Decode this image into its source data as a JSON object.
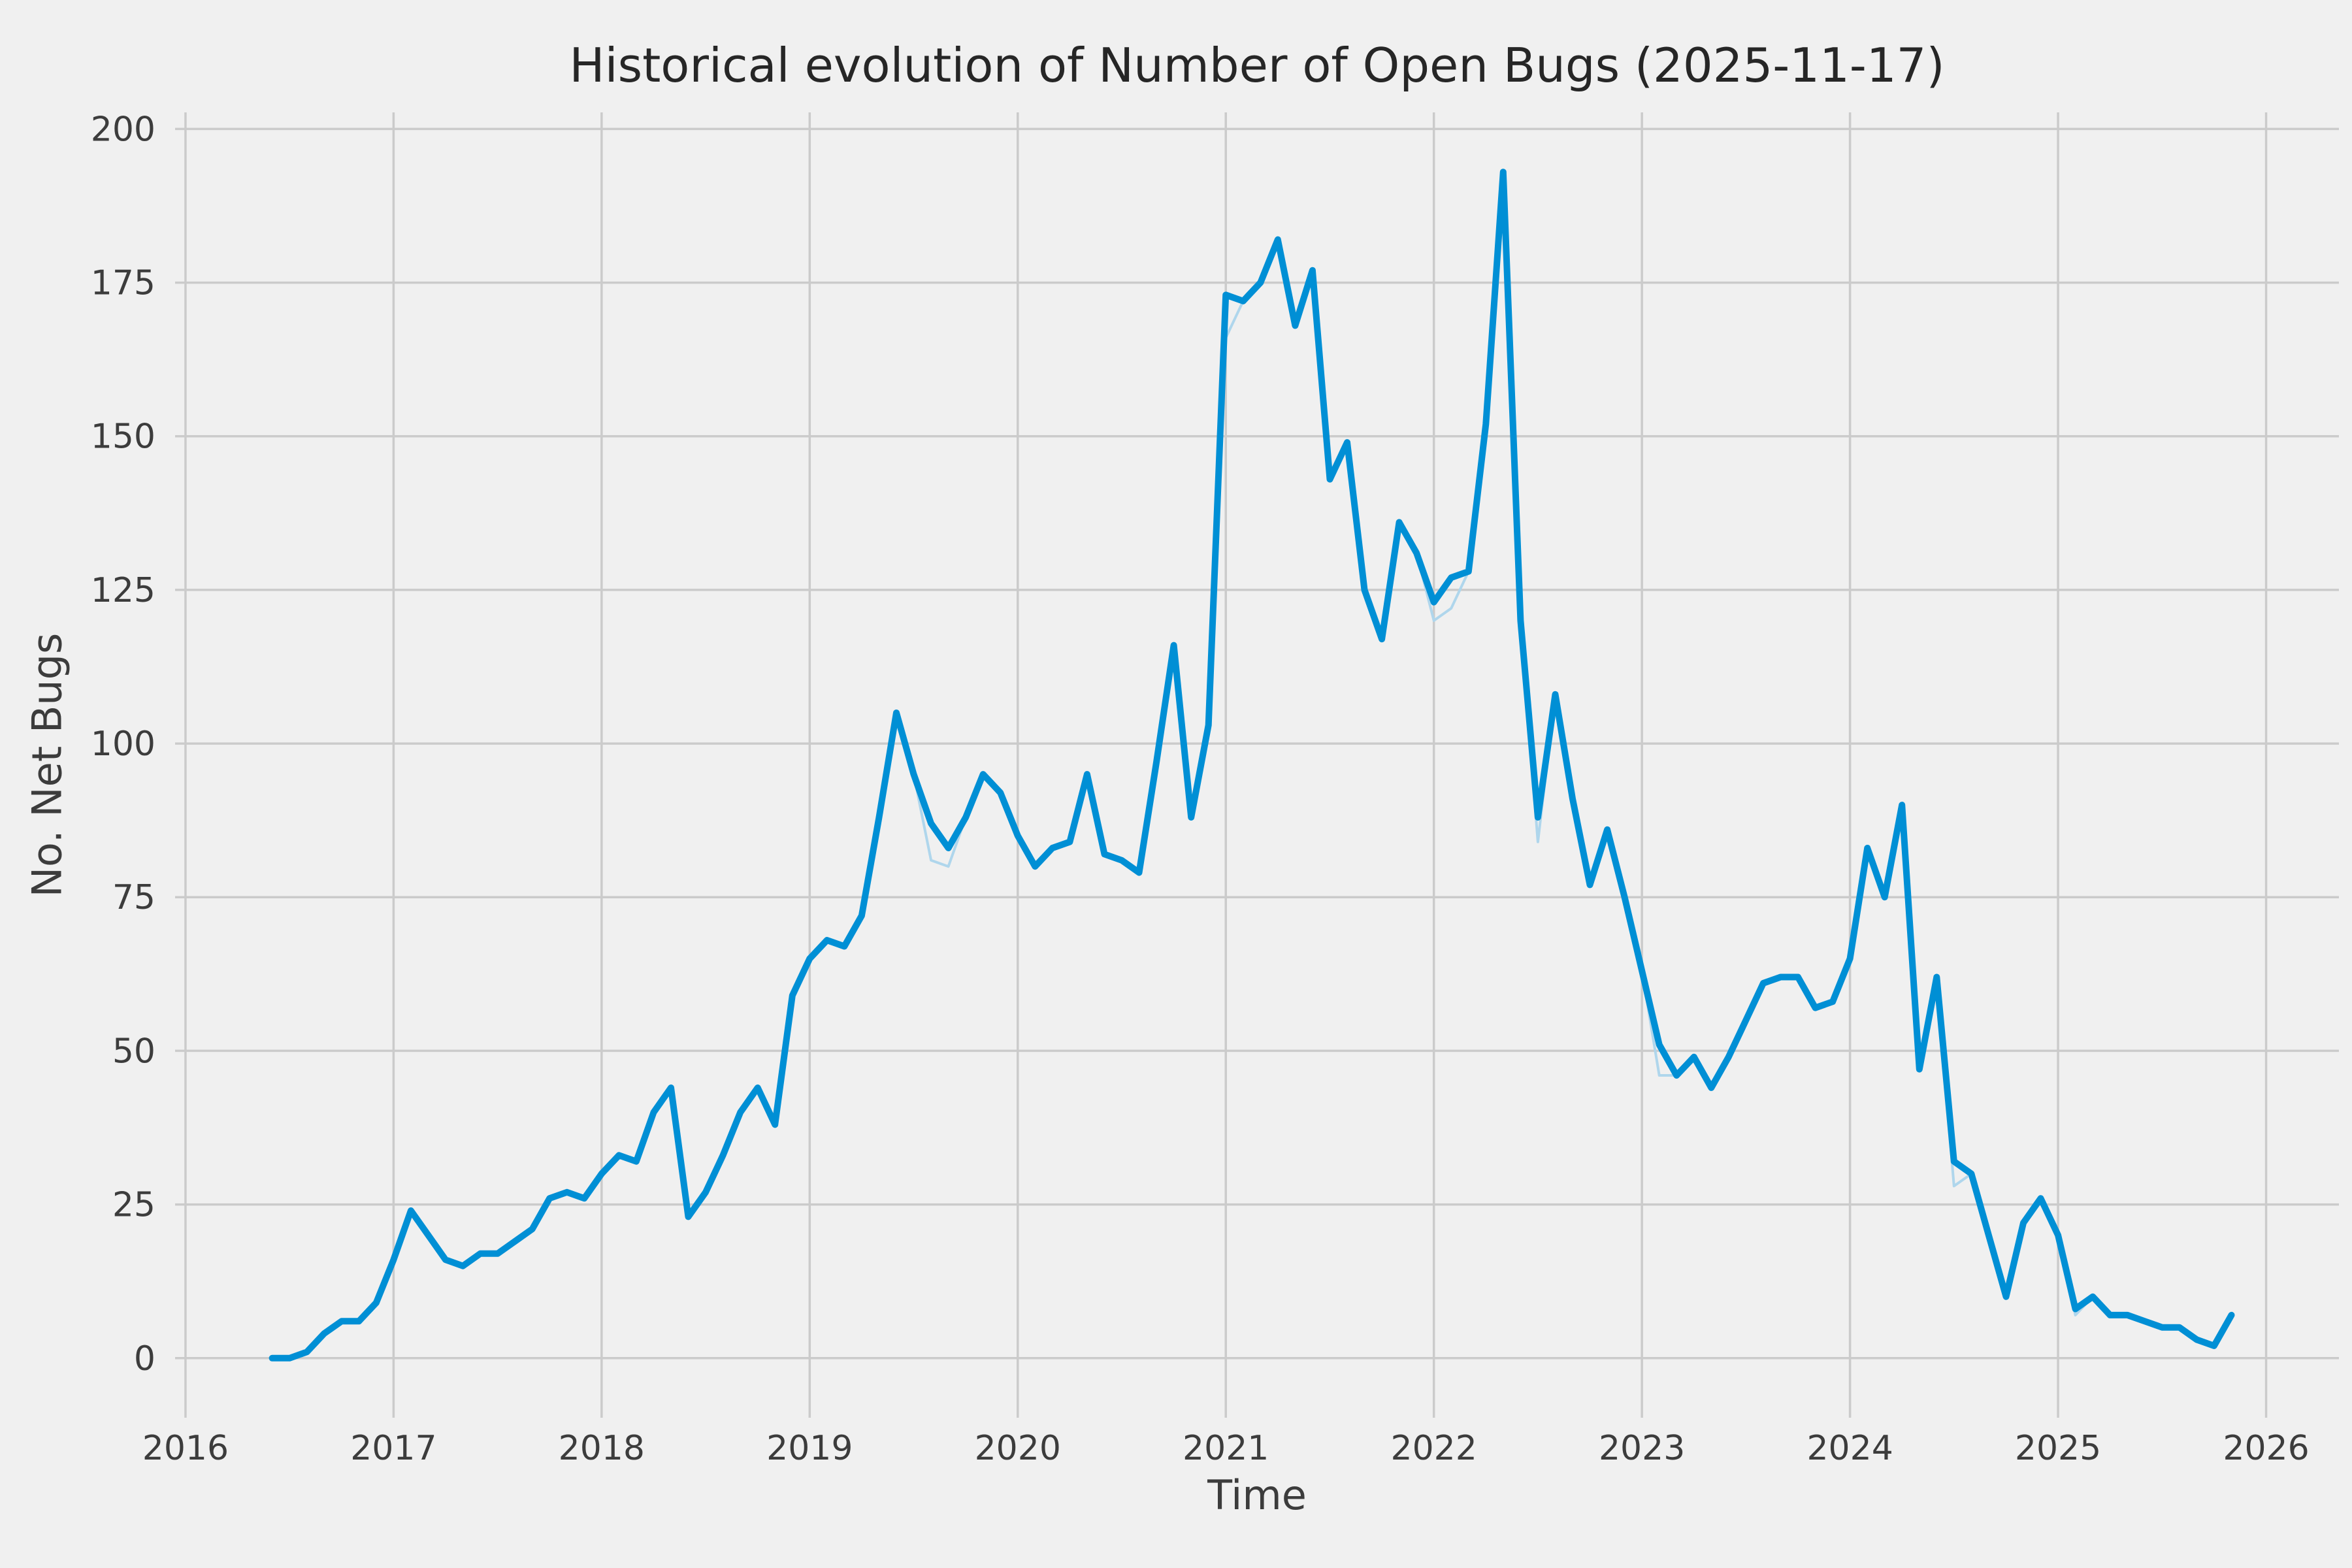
{
  "title": "Historical evolution of Number of Open Bugs (2025-11-17)",
  "colors": {
    "background": "#F0F0F0",
    "grid": "#CBCBCB",
    "line": "#008FD5",
    "line_secondary": "#AFD6EC",
    "title_text": "#262626",
    "tick_text": "#3C3C3C"
  },
  "chart_data": {
    "type": "line",
    "title": "Historical evolution of Number of Open Bugs (2025-11-17)",
    "xlabel": "Time",
    "ylabel": "No. Net Bugs",
    "grid": true,
    "legend_position": "none",
    "x_start": {
      "year": 2016,
      "month": 6
    },
    "cadence": "monthly",
    "x_ticks": [
      2016,
      2017,
      2018,
      2019,
      2020,
      2021,
      2022,
      2023,
      2024,
      2025,
      2026
    ],
    "y_ticks": [
      0,
      25,
      50,
      75,
      100,
      125,
      150,
      175,
      200
    ],
    "xlim": [
      2015.95,
      2026.35
    ],
    "ylim": [
      -9.7,
      202.7
    ],
    "series": [
      {
        "name": "open-bugs",
        "color_key": "line",
        "width": 10,
        "values": [
          0,
          0,
          1,
          4,
          6,
          6,
          9,
          16,
          24,
          20,
          16,
          15,
          17,
          17,
          19,
          21,
          26,
          27,
          26,
          30,
          33,
          32,
          40,
          44,
          23,
          27,
          33,
          40,
          44,
          38,
          59,
          65,
          68,
          67,
          72,
          88,
          105,
          95,
          87,
          83,
          88,
          95,
          92,
          85,
          80,
          83,
          84,
          95,
          82,
          81,
          79,
          97,
          116,
          88,
          103,
          173,
          172,
          175,
          182,
          168,
          177,
          143,
          149,
          125,
          117,
          136,
          131,
          123,
          127,
          128,
          152,
          193,
          120,
          88,
          108,
          91,
          77,
          86,
          75,
          63,
          51,
          46,
          49,
          44,
          49,
          55,
          61,
          62,
          62,
          57,
          58,
          65,
          83,
          75,
          90,
          47,
          62,
          32,
          30,
          20,
          10,
          22,
          26,
          20,
          8,
          10,
          7,
          7,
          6,
          5,
          5,
          3,
          2,
          7
        ]
      },
      {
        "name": "open-bugs-shadow",
        "color_key": "line_secondary",
        "width": 4,
        "values": [
          0,
          0,
          1,
          4,
          6,
          6,
          9,
          16,
          24,
          20,
          16,
          15,
          17,
          17,
          19,
          21,
          26,
          27,
          26,
          30,
          33,
          32,
          40,
          44,
          23,
          27,
          33,
          40,
          44,
          38,
          59,
          65,
          68,
          67,
          72,
          88,
          105,
          95,
          81,
          80,
          88,
          95,
          92,
          85,
          80,
          83,
          84,
          95,
          82,
          81,
          79,
          97,
          116,
          88,
          103,
          166,
          172,
          175,
          182,
          168,
          177,
          143,
          149,
          125,
          117,
          136,
          131,
          120,
          122,
          128,
          152,
          193,
          120,
          84,
          108,
          91,
          77,
          86,
          75,
          63,
          46,
          46,
          49,
          44,
          49,
          55,
          61,
          62,
          62,
          57,
          58,
          65,
          83,
          75,
          90,
          47,
          62,
          28,
          30,
          20,
          10,
          22,
          26,
          20,
          7,
          10,
          7,
          7,
          6,
          5,
          5,
          3,
          2,
          7
        ]
      }
    ]
  }
}
